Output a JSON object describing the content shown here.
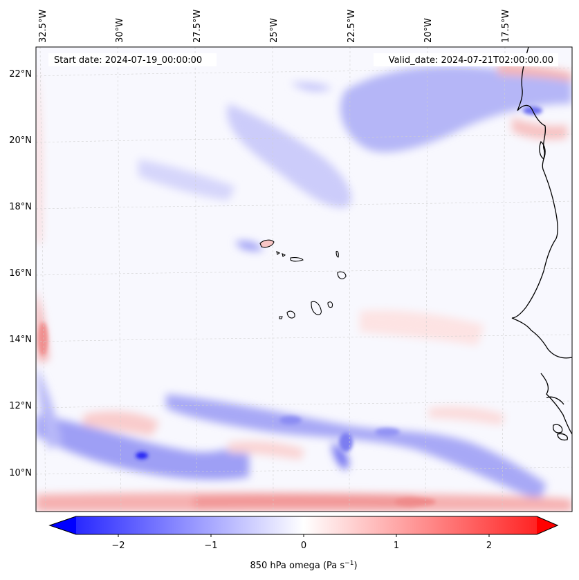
{
  "map": {
    "start_label": "Start date: 2024-07-19_00:00:00",
    "valid_label": "Valid_date: 2024-07-21T02:00:00.00",
    "lon_labels": [
      "32.5°W",
      "30°W",
      "27.5°W",
      "25°W",
      "22.5°W",
      "20°W",
      "17.5°W"
    ],
    "lat_labels": [
      "22°N",
      "20°N",
      "18°N",
      "16°N",
      "14°N",
      "12°N",
      "10°N"
    ],
    "gridlines": "dashed",
    "colormap": "bwr",
    "colors": {
      "negative": "#0000ff",
      "zero": "#ffffff",
      "positive": "#ff0000",
      "coastline": "#000000"
    }
  },
  "colorbar": {
    "label_main": "850 hPa omega (Pa s",
    "label_sup": "−1",
    "label_end": ")",
    "ticks": [
      "−2",
      "−1",
      "0",
      "1",
      "2"
    ],
    "vmin": -2.7,
    "vmax": 2.7,
    "extend": "both"
  }
}
